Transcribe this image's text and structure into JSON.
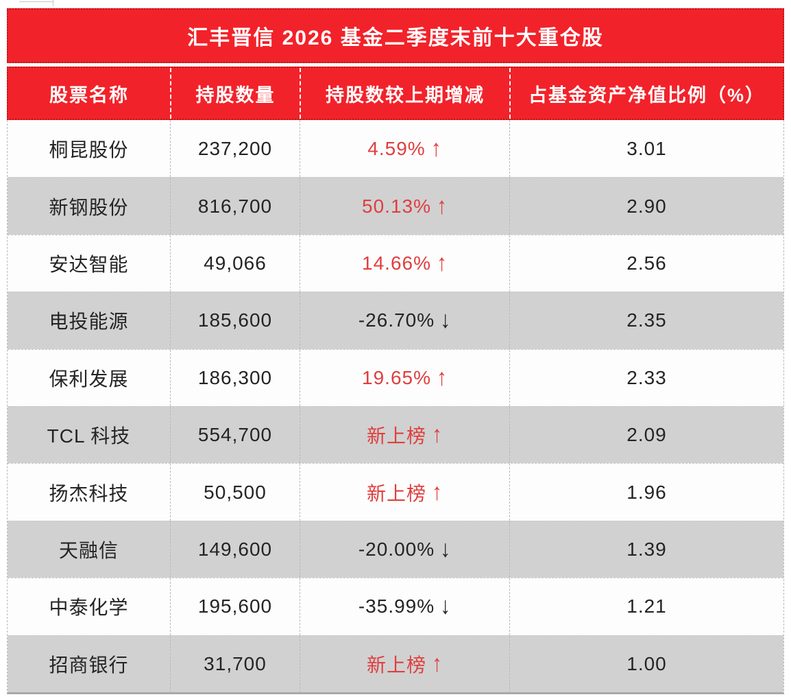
{
  "table": {
    "title": "汇丰晋信 2026 基金二季度末前十大重仓股",
    "columns": [
      "股票名称",
      "持股数量",
      "持股数较上期增减",
      "占基金资产净值比例（%）"
    ],
    "rows": [
      {
        "name": "桐昆股份",
        "shares": "237,200",
        "change": "4.59%",
        "arrow": "↑",
        "trend": "up",
        "ratio": "3.01"
      },
      {
        "name": "新钢股份",
        "shares": "816,700",
        "change": "50.13%",
        "arrow": "↑",
        "trend": "up",
        "ratio": "2.90"
      },
      {
        "name": "安达智能",
        "shares": "49,066",
        "change": "14.66%",
        "arrow": "↑",
        "trend": "up",
        "ratio": "2.56"
      },
      {
        "name": "电投能源",
        "shares": "185,600",
        "change": "-26.70%",
        "arrow": "↓",
        "trend": "down",
        "ratio": "2.35"
      },
      {
        "name": "保利发展",
        "shares": "186,300",
        "change": "19.65%",
        "arrow": "↑",
        "trend": "up",
        "ratio": "2.33"
      },
      {
        "name": "TCL 科技",
        "shares": "554,700",
        "change": "新上榜",
        "arrow": "↑",
        "trend": "up",
        "ratio": "2.09"
      },
      {
        "name": "扬杰科技",
        "shares": "50,500",
        "change": "新上榜",
        "arrow": "↑",
        "trend": "up",
        "ratio": "1.96"
      },
      {
        "name": "天融信",
        "shares": "149,600",
        "change": "-20.00%",
        "arrow": "↓",
        "trend": "down",
        "ratio": "1.39"
      },
      {
        "name": "中泰化学",
        "shares": "195,600",
        "change": "-35.99%",
        "arrow": "↓",
        "trend": "down",
        "ratio": "1.21"
      },
      {
        "name": "招商银行",
        "shares": "31,700",
        "change": "新上榜",
        "arrow": "↑",
        "trend": "up",
        "ratio": "1.00"
      }
    ],
    "colors": {
      "header_red": "#f2222a",
      "border_red": "#c01515",
      "row_gray": "#d1d1d1",
      "row_white": "#fdfdfd",
      "text_dark": "#242424",
      "text_red": "#e03e3e"
    }
  }
}
